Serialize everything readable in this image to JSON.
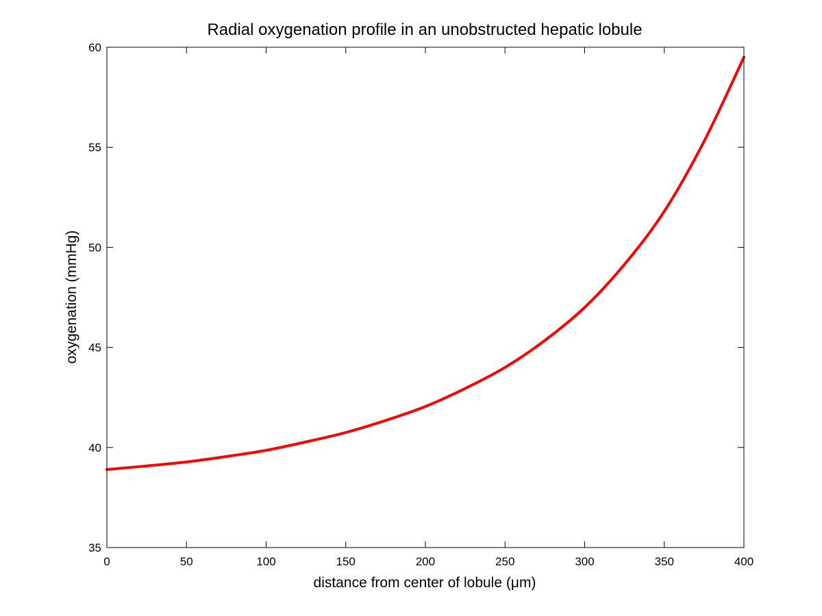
{
  "chart_data": {
    "type": "line",
    "title": "Radial oxygenation profile in an unobstructed hepatic lobule",
    "xlabel": "distance from center of lobule (μm)",
    "ylabel": "oxygenation (mmHg)",
    "xlim": [
      0,
      400
    ],
    "ylim": [
      35,
      60
    ],
    "xticks": [
      0,
      50,
      100,
      150,
      200,
      250,
      300,
      350,
      400
    ],
    "yticks": [
      35,
      40,
      45,
      50,
      55,
      60
    ],
    "grid": false,
    "legend": "none",
    "series": [
      {
        "color": "#ff0000",
        "x": [
          0,
          25,
          50,
          75,
          100,
          125,
          150,
          175,
          200,
          225,
          250,
          275,
          300,
          325,
          350,
          375,
          400
        ],
        "y": [
          38.9,
          39.08,
          39.28,
          39.55,
          39.86,
          40.28,
          40.75,
          41.35,
          42.05,
          42.95,
          44.0,
          45.35,
          47.0,
          49.15,
          51.8,
          55.3,
          59.5
        ]
      }
    ]
  }
}
